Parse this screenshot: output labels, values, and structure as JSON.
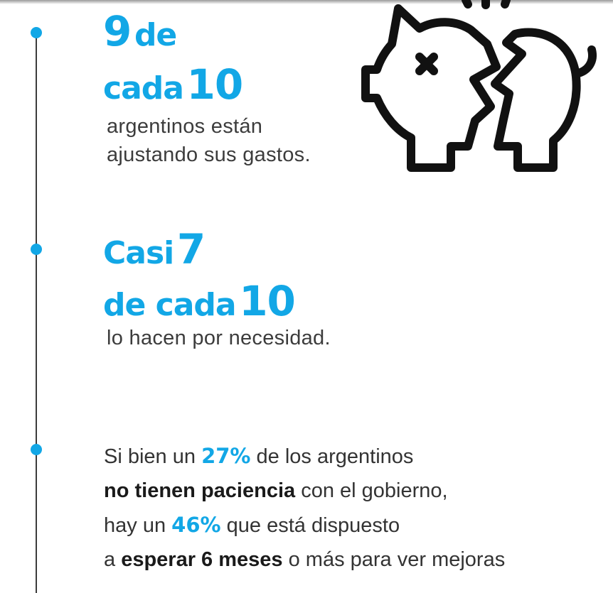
{
  "stat1": {
    "line1_number": "9",
    "line1_word": "de",
    "line2_word": "cada",
    "line2_number": "10",
    "description_line1": "argentinos están",
    "description_line2": "ajustando sus gastos."
  },
  "stat2": {
    "line1_word": "Casi",
    "line1_number": "7",
    "line2_word": "de cada",
    "line2_number": "10",
    "description": "lo hacen por necesidad."
  },
  "stat3": {
    "line1": {
      "pre": "Si bien un",
      "highlight": "27%",
      "post": "de los argentinos"
    },
    "line2": {
      "bold": "no tienen paciencia",
      "post": "con el gobierno,"
    },
    "line3": {
      "pre": "hay un",
      "highlight": "46%",
      "post": "que está dispuesto"
    },
    "line4": {
      "pre": "a",
      "bold": "esperar 6 meses",
      "post": "o más para ver mejoras"
    }
  },
  "icons": {
    "illustration": "broken-piggy-bank-icon"
  },
  "colors": {
    "accent": "#12a7e6",
    "text": "#333333",
    "line": "#3c3c3c"
  }
}
